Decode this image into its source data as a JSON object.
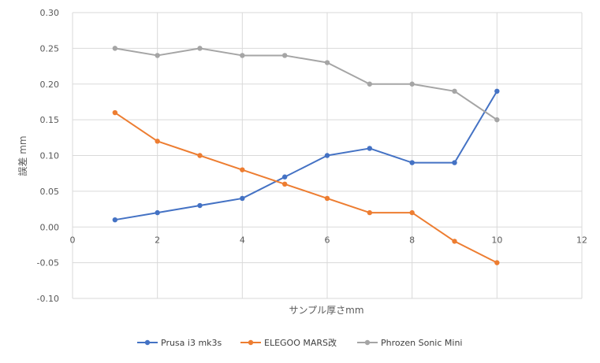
{
  "chart_data": {
    "type": "scatter",
    "title": "",
    "xlabel": "サンプル厚さmm",
    "ylabel": "誤差 mm",
    "xlim": [
      0,
      12
    ],
    "ylim": [
      -0.1,
      0.3
    ],
    "x_ticks": [
      "0",
      "2",
      "4",
      "6",
      "8",
      "10",
      "12"
    ],
    "y_ticks": [
      "0.30",
      "0.25",
      "0.20",
      "0.15",
      "0.10",
      "0.05",
      "0.00",
      "-0.05",
      "-0.10"
    ],
    "grid": true,
    "legend_position": "bottom",
    "x": [
      1,
      2,
      3,
      4,
      5,
      6,
      7,
      8,
      9,
      10
    ],
    "series": [
      {
        "name": "Prusa i3 mk3s",
        "color": "#4472C4",
        "values": [
          0.01,
          0.02,
          0.03,
          0.04,
          0.07,
          0.1,
          0.11,
          0.09,
          0.09,
          0.19
        ]
      },
      {
        "name": "ELEGOO MARS改",
        "color": "#ED7D31",
        "values": [
          0.16,
          0.12,
          0.1,
          0.08,
          0.06,
          0.04,
          0.02,
          0.02,
          -0.02,
          -0.05
        ]
      },
      {
        "name": "Phrozen Sonic Mini",
        "color": "#A5A5A5",
        "values": [
          0.25,
          0.24,
          0.25,
          0.24,
          0.24,
          0.23,
          0.2,
          0.2,
          0.19,
          0.15
        ]
      }
    ]
  }
}
